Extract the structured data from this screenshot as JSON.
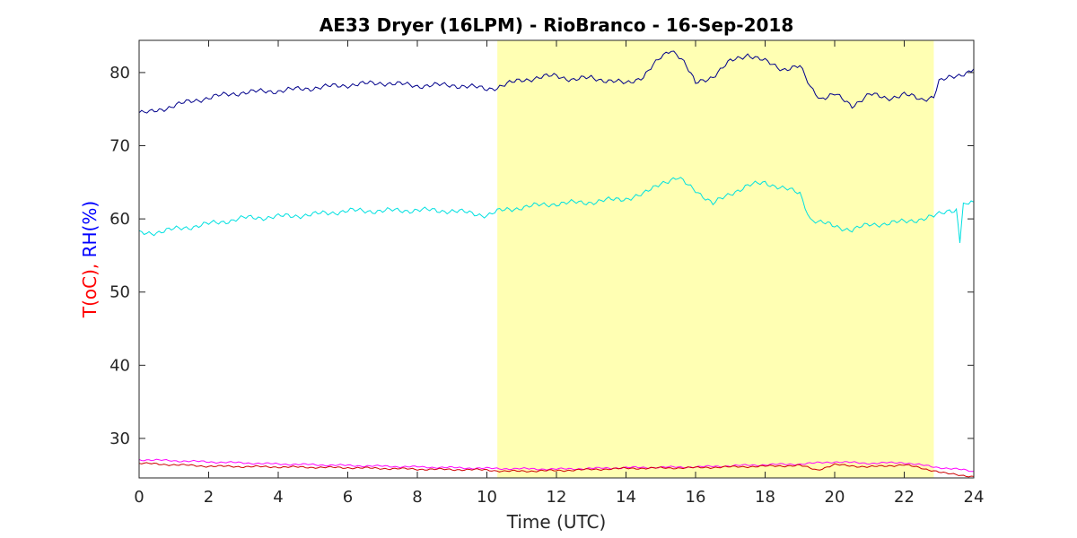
{
  "chart_data": {
    "type": "line",
    "title": "AE33 Dryer (16LPM)  - RioBranco - 16-Sep-2018",
    "xlabel": "Time (UTC)",
    "ylabel_parts": [
      {
        "text": "T(oC), ",
        "color": "#ff0000"
      },
      {
        "text": "RH(%)",
        "color": "#0000ff"
      }
    ],
    "xlim": [
      0,
      24
    ],
    "ylim": [
      24.6,
      84.4
    ],
    "xticks": [
      0,
      2,
      4,
      6,
      8,
      10,
      12,
      14,
      16,
      18,
      20,
      22,
      24
    ],
    "yticks": [
      30,
      40,
      50,
      60,
      70,
      80
    ],
    "grid": false,
    "shaded_region": {
      "x_start": 10.3,
      "x_end": 22.85,
      "color": "#ffffb3"
    },
    "series": [
      {
        "color": "#00008b",
        "x": [
          0,
          0.3,
          1,
          2,
          3,
          4,
          5,
          6,
          7,
          8,
          9,
          10,
          10.3,
          11,
          12,
          12.5,
          13,
          14,
          14.5,
          15,
          15.3,
          15.6,
          16,
          16.5,
          17,
          17.5,
          18,
          18.5,
          19,
          19.3,
          19.6,
          20,
          20.5,
          21,
          21.5,
          22,
          22.5,
          22.85,
          23,
          23.5,
          24
        ],
        "y": [
          74.5,
          74.5,
          75.5,
          76.6,
          77.3,
          77.5,
          77.9,
          78.3,
          78.6,
          78.2,
          78.3,
          77.8,
          78,
          79,
          79.6,
          79,
          79.3,
          78.5,
          79.5,
          82,
          83.2,
          82,
          78.5,
          79.5,
          81.5,
          82.5,
          81.5,
          80.5,
          80.8,
          78,
          76.5,
          77,
          75.5,
          77,
          76.5,
          77,
          76.3,
          76.8,
          78.8,
          79.5,
          80.5
        ]
      },
      {
        "color": "#00e0e0",
        "x": [
          0,
          0.5,
          2,
          3,
          4,
          5,
          6,
          7,
          8,
          9,
          10,
          10.3,
          11,
          12,
          13,
          14,
          14.5,
          15,
          15.5,
          16,
          16.5,
          17,
          17.5,
          18,
          18.5,
          19,
          19.3,
          19.6,
          20,
          20.5,
          21,
          22,
          22.85,
          23.3,
          23.5,
          23.6,
          23.7,
          24
        ],
        "y": [
          58,
          58.2,
          59.3,
          60.1,
          60.3,
          60.6,
          61.1,
          61.1,
          61.2,
          61.1,
          60.5,
          61,
          61.6,
          62.1,
          62.3,
          62.8,
          63.3,
          65,
          65.5,
          64,
          62,
          63.5,
          64.5,
          65,
          64.2,
          63.5,
          60,
          59.5,
          59,
          58.5,
          59.2,
          59.6,
          60.3,
          61.2,
          61.3,
          57,
          61.8,
          62.3
        ]
      },
      {
        "color": "#ff00ff",
        "x": [
          0,
          2,
          4,
          6,
          8,
          10,
          12,
          14,
          16,
          18,
          19,
          20,
          21,
          22,
          22.85,
          23.5,
          24
        ],
        "y": [
          27.1,
          26.8,
          26.5,
          26.3,
          26.1,
          25.9,
          25.8,
          26,
          26.1,
          26.4,
          26.5,
          26.8,
          26.6,
          26.7,
          26.1,
          25.8,
          25.5
        ]
      },
      {
        "color": "#cc0000",
        "x": [
          0,
          1,
          2,
          4,
          6,
          8,
          10,
          10.5,
          12,
          14,
          16,
          18,
          19,
          19.5,
          20,
          21,
          22,
          22.85,
          23.2,
          24
        ],
        "y": [
          26.6,
          26.4,
          26.2,
          26.1,
          26,
          25.8,
          25.7,
          25.5,
          25.6,
          25.9,
          26,
          26.2,
          26.3,
          25.7,
          26.4,
          26.1,
          26.4,
          25.6,
          25.2,
          24.8
        ]
      }
    ]
  }
}
